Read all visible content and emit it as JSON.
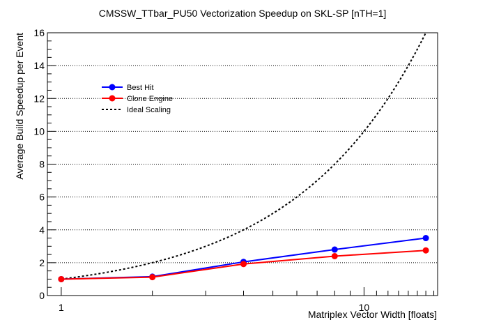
{
  "chart_data": {
    "type": "line",
    "title": "CMSSW_TTbar_PU50 Vectorization Speedup on SKL-SP [nTH=1]",
    "xlabel": "Matriplex Vector Width [floats]",
    "ylabel": "Average Build Speedup per Event",
    "x_scale": "log",
    "xlim": [
      0.9,
      17.5
    ],
    "ylim": [
      0,
      16
    ],
    "x_tick_labels": [
      {
        "value": 1,
        "label": "1"
      },
      {
        "value": 10,
        "label": "10"
      }
    ],
    "y_ticks": [
      0,
      2,
      4,
      6,
      8,
      10,
      12,
      14,
      16
    ],
    "grid": "horizontal dotted",
    "legend_position": "upper-left",
    "x": [
      1,
      2,
      4,
      8,
      16
    ],
    "series": [
      {
        "name": "Best Hit",
        "values": [
          1.0,
          1.15,
          2.05,
          2.8,
          3.5
        ],
        "color": "#0000ff",
        "style": "line-marker"
      },
      {
        "name": "Clone Engine",
        "values": [
          1.0,
          1.12,
          1.92,
          2.4,
          2.75
        ],
        "color": "#ff0000",
        "style": "line-marker"
      },
      {
        "name": "Ideal Scaling",
        "values": [
          1,
          2,
          4,
          8,
          16
        ],
        "color": "#000000",
        "style": "dashed"
      }
    ]
  }
}
